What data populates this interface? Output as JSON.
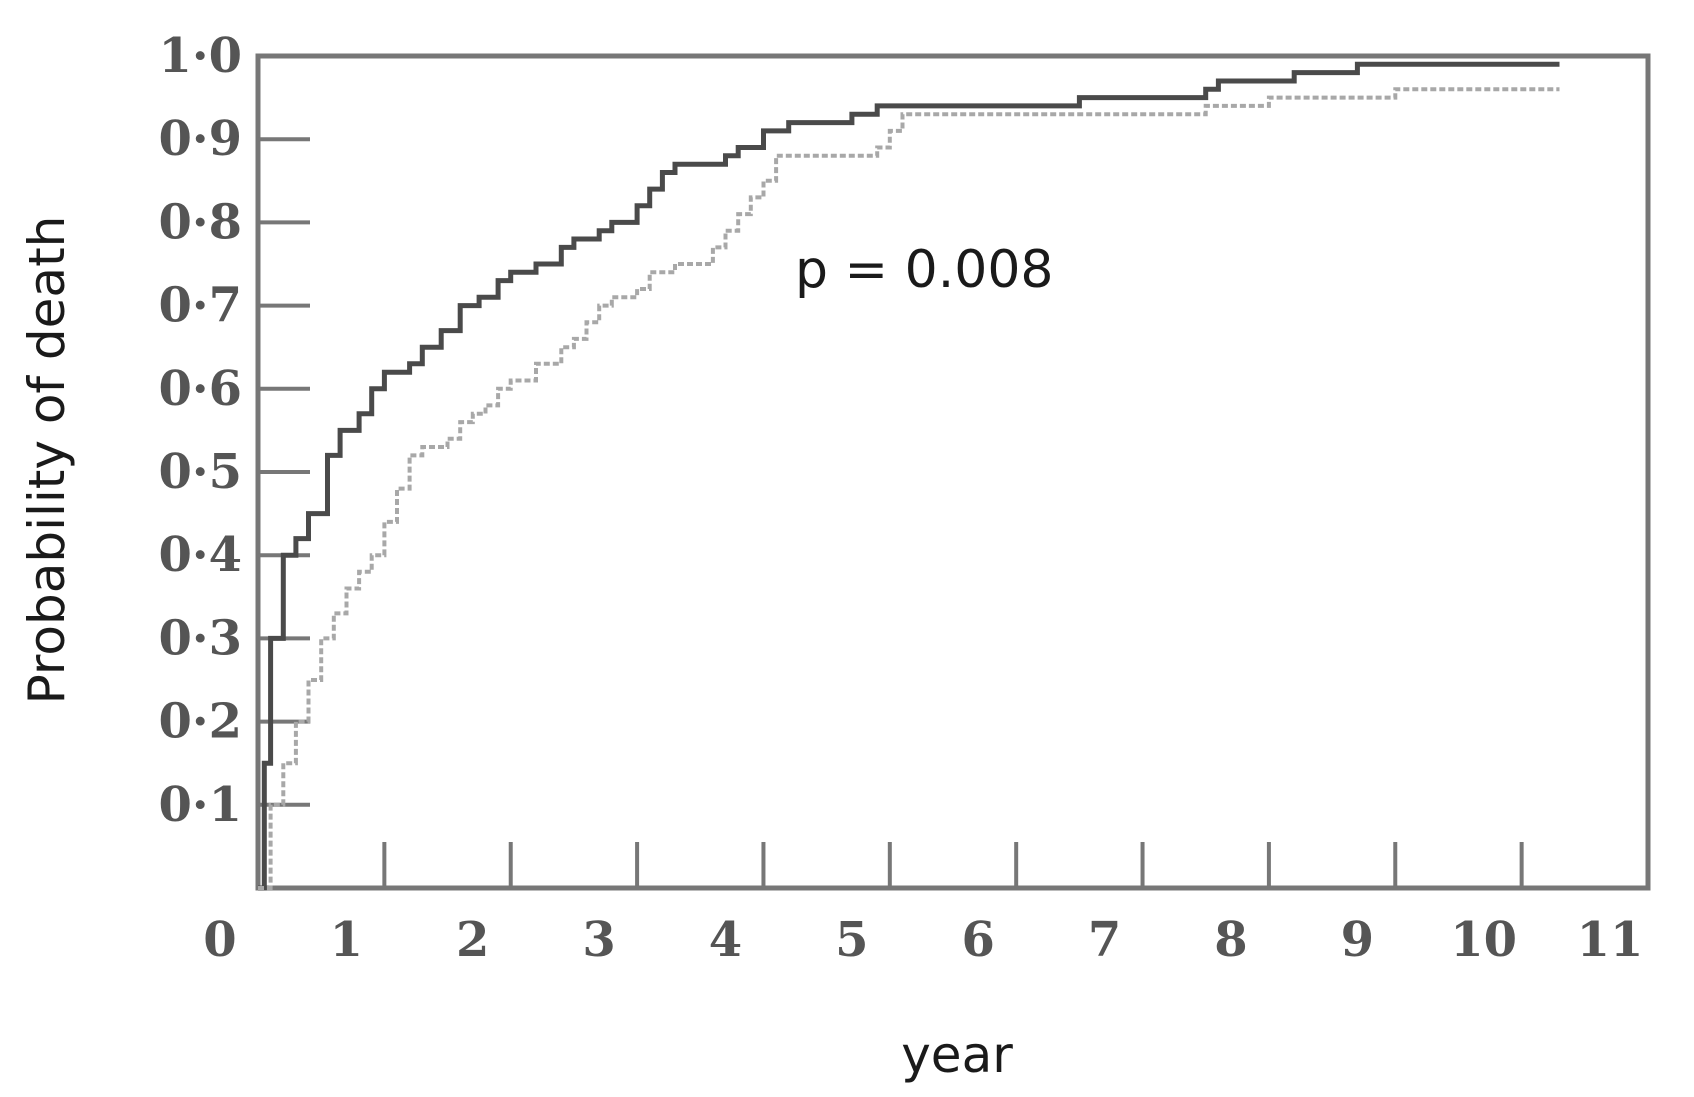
{
  "chart_data": {
    "type": "line",
    "xlabel": "year",
    "ylabel": "Probability of death",
    "xlim": [
      0,
      11
    ],
    "ylim": [
      0,
      1.0
    ],
    "x_ticks": [
      0,
      1,
      2,
      3,
      4,
      5,
      6,
      7,
      8,
      9,
      10,
      11
    ],
    "x_tick_labels": [
      "0",
      "1",
      "2",
      "3",
      "4",
      "5",
      "6",
      "7",
      "8",
      "9",
      "10",
      "11"
    ],
    "y_ticks": [
      0.1,
      0.2,
      0.3,
      0.4,
      0.5,
      0.6,
      0.7,
      0.8,
      0.9,
      1.0
    ],
    "y_tick_labels": [
      "0·1",
      "0·2",
      "0·3",
      "0·4",
      "0·5",
      "0·6",
      "0·7",
      "0·8",
      "0·9",
      "1·0"
    ],
    "grid": false,
    "annotation": "p = 0.008",
    "colors": {
      "axis": "#777777",
      "dark_series": "#4a4a4a",
      "light_series": "#a8a8a8"
    },
    "series": [
      {
        "style": "solid-dark",
        "x": [
          0.0,
          0.05,
          0.05,
          0.1,
          0.1,
          0.2,
          0.2,
          0.3,
          0.4,
          0.55,
          0.55,
          0.65,
          0.8,
          0.9,
          1.0,
          1.2,
          1.3,
          1.45,
          1.6,
          1.75,
          1.9,
          2.0,
          2.2,
          2.4,
          2.5,
          2.7,
          2.8,
          3.0,
          3.1,
          3.2,
          3.3,
          3.5,
          3.7,
          3.8,
          3.9,
          4.0,
          4.2,
          4.5,
          4.7,
          4.8,
          4.9,
          5.5,
          6.2,
          6.5,
          6.8,
          7.2,
          7.5,
          7.6,
          8.0,
          8.2,
          8.7,
          9.0,
          10.3
        ],
        "y": [
          0.0,
          0.1,
          0.15,
          0.25,
          0.3,
          0.35,
          0.4,
          0.42,
          0.45,
          0.48,
          0.52,
          0.55,
          0.57,
          0.6,
          0.62,
          0.63,
          0.65,
          0.67,
          0.7,
          0.71,
          0.73,
          0.74,
          0.75,
          0.77,
          0.78,
          0.79,
          0.8,
          0.82,
          0.84,
          0.86,
          0.87,
          0.87,
          0.88,
          0.89,
          0.89,
          0.91,
          0.92,
          0.92,
          0.93,
          0.93,
          0.94,
          0.94,
          0.94,
          0.95,
          0.95,
          0.95,
          0.96,
          0.97,
          0.97,
          0.98,
          0.99,
          0.99,
          0.99
        ]
      },
      {
        "style": "dotted-light",
        "x": [
          0.0,
          0.1,
          0.2,
          0.3,
          0.4,
          0.5,
          0.6,
          0.7,
          0.8,
          0.9,
          1.0,
          1.1,
          1.2,
          1.3,
          1.5,
          1.6,
          1.7,
          1.8,
          1.9,
          2.0,
          2.2,
          2.4,
          2.5,
          2.6,
          2.7,
          2.8,
          3.0,
          3.1,
          3.3,
          3.5,
          3.6,
          3.7,
          3.8,
          3.9,
          4.0,
          4.1,
          4.5,
          4.8,
          4.9,
          5.0,
          5.1,
          5.5,
          6.0,
          6.5,
          7.0,
          7.5,
          8.0,
          9.0,
          10.3
        ],
        "y": [
          0.0,
          0.1,
          0.15,
          0.2,
          0.25,
          0.3,
          0.33,
          0.36,
          0.38,
          0.4,
          0.44,
          0.48,
          0.52,
          0.53,
          0.54,
          0.56,
          0.57,
          0.58,
          0.6,
          0.61,
          0.63,
          0.65,
          0.66,
          0.68,
          0.7,
          0.71,
          0.72,
          0.74,
          0.75,
          0.75,
          0.77,
          0.79,
          0.81,
          0.83,
          0.85,
          0.88,
          0.88,
          0.88,
          0.89,
          0.91,
          0.93,
          0.93,
          0.93,
          0.93,
          0.93,
          0.94,
          0.95,
          0.96,
          0.96
        ]
      }
    ]
  }
}
